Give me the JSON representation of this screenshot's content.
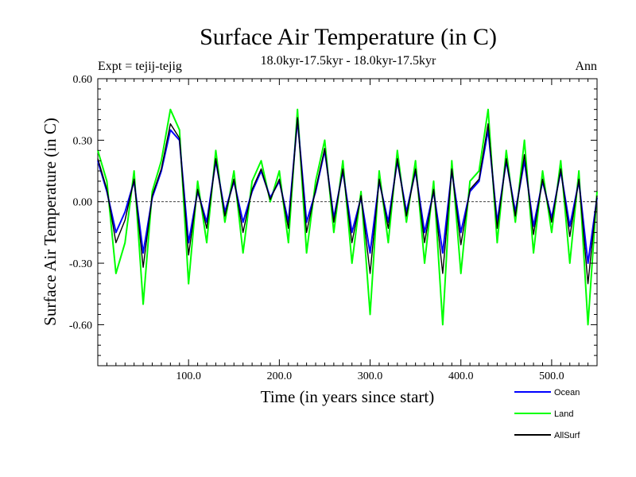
{
  "chart_data": {
    "type": "line",
    "title": "Surface Air Temperature (in C)",
    "subtitle": "18.0kyr-17.5kyr - 18.0kyr-17.5kyr",
    "experiment_label": "Expt = tejij-tejig",
    "season_label": "Ann",
    "xlabel": "Time (in years since start)",
    "ylabel": "Surface Air Temperature (in C)",
    "xlim": [
      0,
      550
    ],
    "ylim": [
      -0.8,
      0.6
    ],
    "x_ticks": [
      {
        "value": 100,
        "label": "100.0"
      },
      {
        "value": 200,
        "label": "200.0"
      },
      {
        "value": 300,
        "label": "300.0"
      },
      {
        "value": 400,
        "label": "400.0"
      },
      {
        "value": 500,
        "label": "500.0"
      }
    ],
    "y_ticks": [
      {
        "value": 0.6,
        "label": "0.60"
      },
      {
        "value": 0.3,
        "label": "0.30"
      },
      {
        "value": 0.0,
        "label": "0.00"
      },
      {
        "value": -0.3,
        "label": "-0.30"
      },
      {
        "value": -0.6,
        "label": "-0.60"
      }
    ],
    "zero_line": true,
    "series": [
      {
        "name": "Land",
        "color": "#00ff00",
        "x": [
          0,
          10,
          20,
          30,
          40,
          50,
          60,
          70,
          80,
          90,
          100,
          110,
          120,
          130,
          140,
          150,
          160,
          170,
          180,
          190,
          200,
          210,
          220,
          230,
          240,
          250,
          260,
          270,
          280,
          290,
          300,
          310,
          320,
          330,
          340,
          350,
          360,
          370,
          380,
          390,
          400,
          410,
          420,
          430,
          440,
          450,
          460,
          470,
          480,
          490,
          500,
          510,
          520,
          530,
          540,
          550
        ],
        "values": [
          0.25,
          0.1,
          -0.35,
          -0.2,
          0.15,
          -0.5,
          0.05,
          0.2,
          0.45,
          0.35,
          -0.4,
          0.1,
          -0.2,
          0.25,
          -0.1,
          0.15,
          -0.25,
          0.1,
          0.2,
          0.0,
          0.15,
          -0.2,
          0.45,
          -0.25,
          0.1,
          0.3,
          -0.15,
          0.2,
          -0.3,
          0.05,
          -0.55,
          0.15,
          -0.2,
          0.25,
          -0.1,
          0.2,
          -0.3,
          0.1,
          -0.6,
          0.2,
          -0.35,
          0.1,
          0.15,
          0.45,
          -0.2,
          0.25,
          -0.1,
          0.3,
          -0.25,
          0.15,
          -0.15,
          0.2,
          -0.3,
          0.15,
          -0.6,
          0.05
        ]
      },
      {
        "name": "Ocean",
        "color": "#0000ff",
        "x": [
          0,
          10,
          20,
          30,
          40,
          50,
          60,
          70,
          80,
          90,
          100,
          110,
          120,
          130,
          140,
          150,
          160,
          170,
          180,
          190,
          200,
          210,
          220,
          230,
          240,
          250,
          260,
          270,
          280,
          290,
          300,
          310,
          320,
          330,
          340,
          350,
          360,
          370,
          380,
          390,
          400,
          410,
          420,
          430,
          440,
          450,
          460,
          470,
          480,
          490,
          500,
          510,
          520,
          530,
          540,
          550
        ],
        "values": [
          0.2,
          0.05,
          -0.15,
          -0.05,
          0.1,
          -0.25,
          0.02,
          0.15,
          0.35,
          0.3,
          -0.2,
          0.05,
          -0.1,
          0.2,
          -0.05,
          0.1,
          -0.1,
          0.05,
          0.15,
          0.02,
          0.1,
          -0.1,
          0.4,
          -0.1,
          0.05,
          0.25,
          -0.08,
          0.15,
          -0.15,
          0.02,
          -0.25,
          0.1,
          -0.1,
          0.2,
          -0.05,
          0.15,
          -0.15,
          0.05,
          -0.25,
          0.15,
          -0.15,
          0.05,
          0.1,
          0.35,
          -0.1,
          0.2,
          -0.05,
          0.2,
          -0.12,
          0.1,
          -0.08,
          0.15,
          -0.12,
          0.1,
          -0.3,
          0.02
        ]
      },
      {
        "name": "AllSurf",
        "color": "#000000",
        "x": [
          0,
          10,
          20,
          30,
          40,
          50,
          60,
          70,
          80,
          90,
          100,
          110,
          120,
          130,
          140,
          150,
          160,
          170,
          180,
          190,
          200,
          210,
          220,
          230,
          240,
          250,
          260,
          270,
          280,
          290,
          300,
          310,
          320,
          330,
          340,
          350,
          360,
          370,
          380,
          390,
          400,
          410,
          420,
          430,
          440,
          450,
          460,
          470,
          480,
          490,
          500,
          510,
          520,
          530,
          540,
          550
        ],
        "values": [
          0.21,
          0.06,
          -0.2,
          -0.09,
          0.11,
          -0.32,
          0.03,
          0.16,
          0.38,
          0.31,
          -0.26,
          0.06,
          -0.13,
          0.21,
          -0.07,
          0.11,
          -0.15,
          0.06,
          0.16,
          0.01,
          0.11,
          -0.13,
          0.41,
          -0.15,
          0.06,
          0.26,
          -0.1,
          0.16,
          -0.2,
          0.03,
          -0.35,
          0.11,
          -0.13,
          0.21,
          -0.07,
          0.16,
          -0.2,
          0.06,
          -0.35,
          0.16,
          -0.21,
          0.06,
          0.11,
          0.38,
          -0.13,
          0.21,
          -0.07,
          0.23,
          -0.16,
          0.11,
          -0.1,
          0.16,
          -0.17,
          0.11,
          -0.4,
          0.03
        ]
      }
    ],
    "legend": {
      "position": "bottom-right",
      "entries": [
        {
          "name": "Ocean",
          "color": "#0000ff"
        },
        {
          "name": "Land",
          "color": "#00ff00"
        },
        {
          "name": "AllSurf",
          "color": "#000000"
        }
      ]
    }
  }
}
